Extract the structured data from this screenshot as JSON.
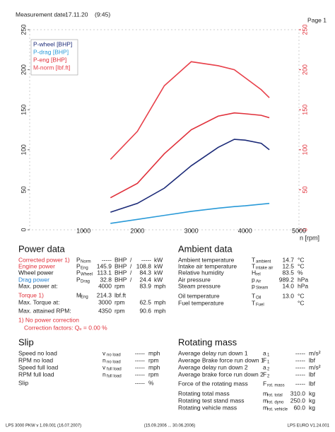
{
  "header": {
    "label": "Measurement date",
    "date": "17.11.20",
    "time": "(9:45)",
    "page": "Page 1"
  },
  "chart_data": {
    "type": "line",
    "x_label": "n [rpm]",
    "x": [
      1500,
      2000,
      2500,
      3000,
      3500,
      3800,
      4000,
      4300,
      4450
    ],
    "xlim": [
      0,
      5000
    ],
    "xticks": [
      1000,
      2000,
      3000,
      4000,
      5000
    ],
    "ylim": [
      0,
      250
    ],
    "yticks": [
      0,
      50,
      100,
      150,
      200,
      250
    ],
    "y2lim": [
      0,
      250
    ],
    "y2ticks": [
      0,
      50,
      100,
      150,
      200,
      250
    ],
    "y2_color": "#e0303a",
    "legend": "upper left",
    "series": [
      {
        "name": "P-wheel [BHP]",
        "color": "#1b2a78",
        "values": [
          22,
          33,
          52,
          80,
          103,
          113,
          112,
          108,
          100
        ]
      },
      {
        "name": "P-drag [BHP]",
        "color": "#2a9ad8",
        "values": [
          8,
          13,
          18,
          23,
          27,
          29,
          30,
          32,
          33
        ]
      },
      {
        "name": "P-eng [BHP]",
        "color": "#e0303a",
        "values": [
          40,
          58,
          95,
          125,
          142,
          146,
          145,
          143,
          140
        ]
      },
      {
        "name": "M-norm [lbf.ft]",
        "color": "#e8404a",
        "axis": "y2",
        "values": [
          88,
          123,
          180,
          210,
          205,
          200,
          190,
          175,
          165
        ]
      }
    ]
  },
  "power_data": {
    "title": "Power data",
    "rows": [
      {
        "label": "Corrected power 1)",
        "color": "#e0303a",
        "sym": "P",
        "sub": "Norm",
        "value": "-----",
        "unit": "BHP",
        "sep": "/",
        "value2": "-----",
        "unit2": "kW"
      },
      {
        "label": "Engine power",
        "color": "#e0303a",
        "sym": "P",
        "sub": "Eng",
        "value": "145.9",
        "unit": "BHP",
        "sep": "/",
        "value2": "108.8",
        "unit2": "kW"
      },
      {
        "label": "Wheel power",
        "color": "#111111",
        "sym": "P",
        "sub": "Wheel",
        "value": "113.1",
        "unit": "BHP",
        "sep": "/",
        "value2": "84.3",
        "unit2": "kW"
      },
      {
        "label": "Drag power",
        "color": "#1f7fd0",
        "sym": "P",
        "sub": "Drag",
        "value": "32.8",
        "unit": "BHP",
        "sep": "/",
        "value2": "24.4",
        "unit2": "kW"
      },
      {
        "label": "Max. power at:",
        "color": "#222222",
        "value": "4000",
        "unit": "rpm",
        "value2": "83.9",
        "unit2": "mph"
      },
      {
        "label": "Torque 1)",
        "color": "#e0303a",
        "sym": "M",
        "sub": "Eng",
        "value": "214.3",
        "unit": "lbf.ft"
      },
      {
        "label": "Max. Torque at:",
        "color": "#222222",
        "value": "3000",
        "unit": "rpm",
        "value2": "62.5",
        "unit2": "mph"
      },
      {
        "label": "Max. attained RPM:",
        "color": "#222222",
        "value": "4350",
        "unit": "rpm",
        "value2": "90.6",
        "unit2": "mph"
      }
    ],
    "note": "1) No power correction",
    "correction": "Correction factors: Qₑ = 0.00 %"
  },
  "ambient_data": {
    "title": "Ambient data",
    "rows": [
      {
        "label": "Ambient temperature",
        "sym": "T",
        "sub": "ambient",
        "value": "14.7",
        "unit": "°C"
      },
      {
        "label": "Intake air temperature",
        "sym": "T",
        "sub": "intake air",
        "value": "12.5",
        "unit": "°C"
      },
      {
        "label": "Relative humidity",
        "sym": "H",
        "sub": "rel",
        "value": "83.5",
        "unit": "%"
      },
      {
        "label": "Air pressure",
        "sym": "p",
        "sub": "Air",
        "value": "989.2",
        "unit": "hPa"
      },
      {
        "label": "Steam pressure",
        "sym": "p",
        "sub": "Steam",
        "value": "14.0",
        "unit": "hPa"
      },
      {
        "label": "Oil temperature",
        "sym": "T",
        "sub": "Oil",
        "value": "13.0",
        "unit": "°C"
      },
      {
        "label": "Fuel temperature",
        "sym": "T",
        "sub": "Fuel",
        "unit": "°C"
      }
    ]
  },
  "slip": {
    "title": "Slip",
    "rows": [
      {
        "label": "Speed no load",
        "sym": "v",
        "sub": "no load",
        "value": "-----",
        "unit": "mph"
      },
      {
        "label": "RPM no load",
        "sym": "n",
        "sub": "no load",
        "value": "-----",
        "unit": "rpm"
      },
      {
        "label": "Speed full load",
        "sym": "v",
        "sub": "full load",
        "value": "-----",
        "unit": "mph"
      },
      {
        "label": "RPM full load",
        "sym": "n",
        "sub": "full load",
        "value": "-----",
        "unit": "rpm"
      },
      {
        "label": "Slip",
        "value": "-----",
        "unit": "%"
      }
    ]
  },
  "rotating_mass": {
    "title": "Rotating mass",
    "rows": [
      {
        "label": "Average delay run down 1",
        "sym": "a",
        "sub": "1",
        "value": "-----",
        "unit": "m/s²"
      },
      {
        "label": "Average Brake force run down 1",
        "sym": "F",
        "sub": "1",
        "value": "-----",
        "unit": "lbf"
      },
      {
        "label": "Average delay run down 2",
        "sym": "a",
        "sub": "2",
        "value": "-----",
        "unit": "m/s²"
      },
      {
        "label": "Average brake force run down 2",
        "sym": "F",
        "sub": "2",
        "value": "-----",
        "unit": "lbf"
      },
      {
        "label": "Force of the rotating mass",
        "sym": "F",
        "sub": "rot. mass",
        "value": "-----",
        "unit": "lbf"
      },
      {
        "label": "Rotating total mass",
        "sym": "m",
        "sub": "rot. total",
        "value": "310.0",
        "unit": "kg"
      },
      {
        "label": "Rotating test stand mass",
        "sym": "m",
        "sub": "rot. dyno",
        "value": "250.0",
        "unit": "kg"
      },
      {
        "label": "Rotating vehicle mass",
        "sym": "m",
        "sub": "rot. vehicle",
        "value": "60.0",
        "unit": "kg"
      }
    ]
  },
  "footer": {
    "left": "LPS 3000 PKW v 1.09.001 (16.07.2007)",
    "middle": "(15.09.2006 ... 30.06.2006)",
    "right": "LPS EURO V1.24.001"
  }
}
